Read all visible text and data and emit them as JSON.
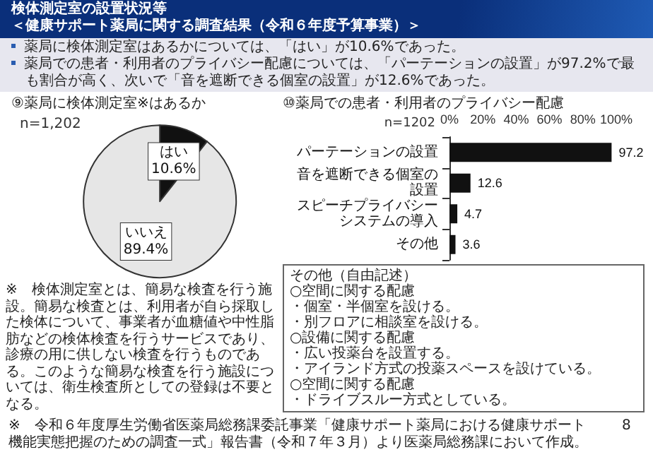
{
  "chart_data": [
    {
      "type": "other",
      "title": "検体測定室の設置状況等",
      "subtitle": "＜健康サポート薬局に関する調査結果（令和６年度予算事業）＞",
      "annotations": [
        "薬局に検体測定室はあるかについては、「はい」が10.6%であった。",
        "薬局での患者・利用者のプライバシー配慮については、「パーテーションの設置」が97.2%で最も割合が高く、次いで「音を遮断できる個室の設置」が12.6%であった。",
        "※　令和６年度厚生労働省医薬局総務課委託事業「健康サポート薬局における健康サポート機能実態把握のための調査一式」報告書（令和７年３月）より医薬局総務課において作成。",
        "8"
      ]
    },
    {
      "type": "pie",
      "title": "⑨薬局に検体測定室※はあるか",
      "categories": [
        "はい",
        "いいえ"
      ],
      "values": [
        10.6,
        89.4
      ],
      "colors": [
        "#111111",
        "#e6e6e6"
      ],
      "value_labels": [
        "10.6%",
        "89.4%"
      ],
      "annotations": [
        "n=1,202",
        "※　検体測定室とは、簡易な検査を行う施設。簡易な検査とは、利用者が自ら採取した検体について、事業者が血糖値や中性脂肪などの検体検査を行うサービスであり、診療の用に供しない検査を行うものである。このような簡易な検査を行う施設については、衛生検査所としての登録は不要となる。"
      ]
    },
    {
      "type": "bar",
      "orientation": "horizontal",
      "title": "⑩薬局での患者・利用者のプライバシー配慮",
      "categories": [
        "パーテーションの設置",
        "音を遮断できる個室の設置",
        "スピーチプライバシーシステムの導入",
        "その他"
      ],
      "values": [
        97.2,
        12.6,
        4.7,
        3.6
      ],
      "color": "#111111",
      "data_labels": true,
      "xlim": [
        0,
        100
      ],
      "xticks": [
        {
          "value": 0,
          "label": "0%"
        },
        {
          "value": 20,
          "label": "20%"
        },
        {
          "value": 40,
          "label": "40%"
        },
        {
          "value": 60,
          "label": "60%"
        },
        {
          "value": 80,
          "label": "80%"
        },
        {
          "value": 100,
          "label": "100%"
        }
      ],
      "annotations": [
        "n=1202",
        "その他（自由記述）",
        "○空間に関する配慮",
        "・個室・半個室を設ける。",
        "・別フロアに相談室を設ける。",
        "○設備に関する配慮",
        "・広い投薬台を設置する。",
        "・アイランド方式の投薬スペースを設けている。",
        "○空間に関する配慮",
        "・ドライブスルー方式としている。"
      ]
    }
  ]
}
